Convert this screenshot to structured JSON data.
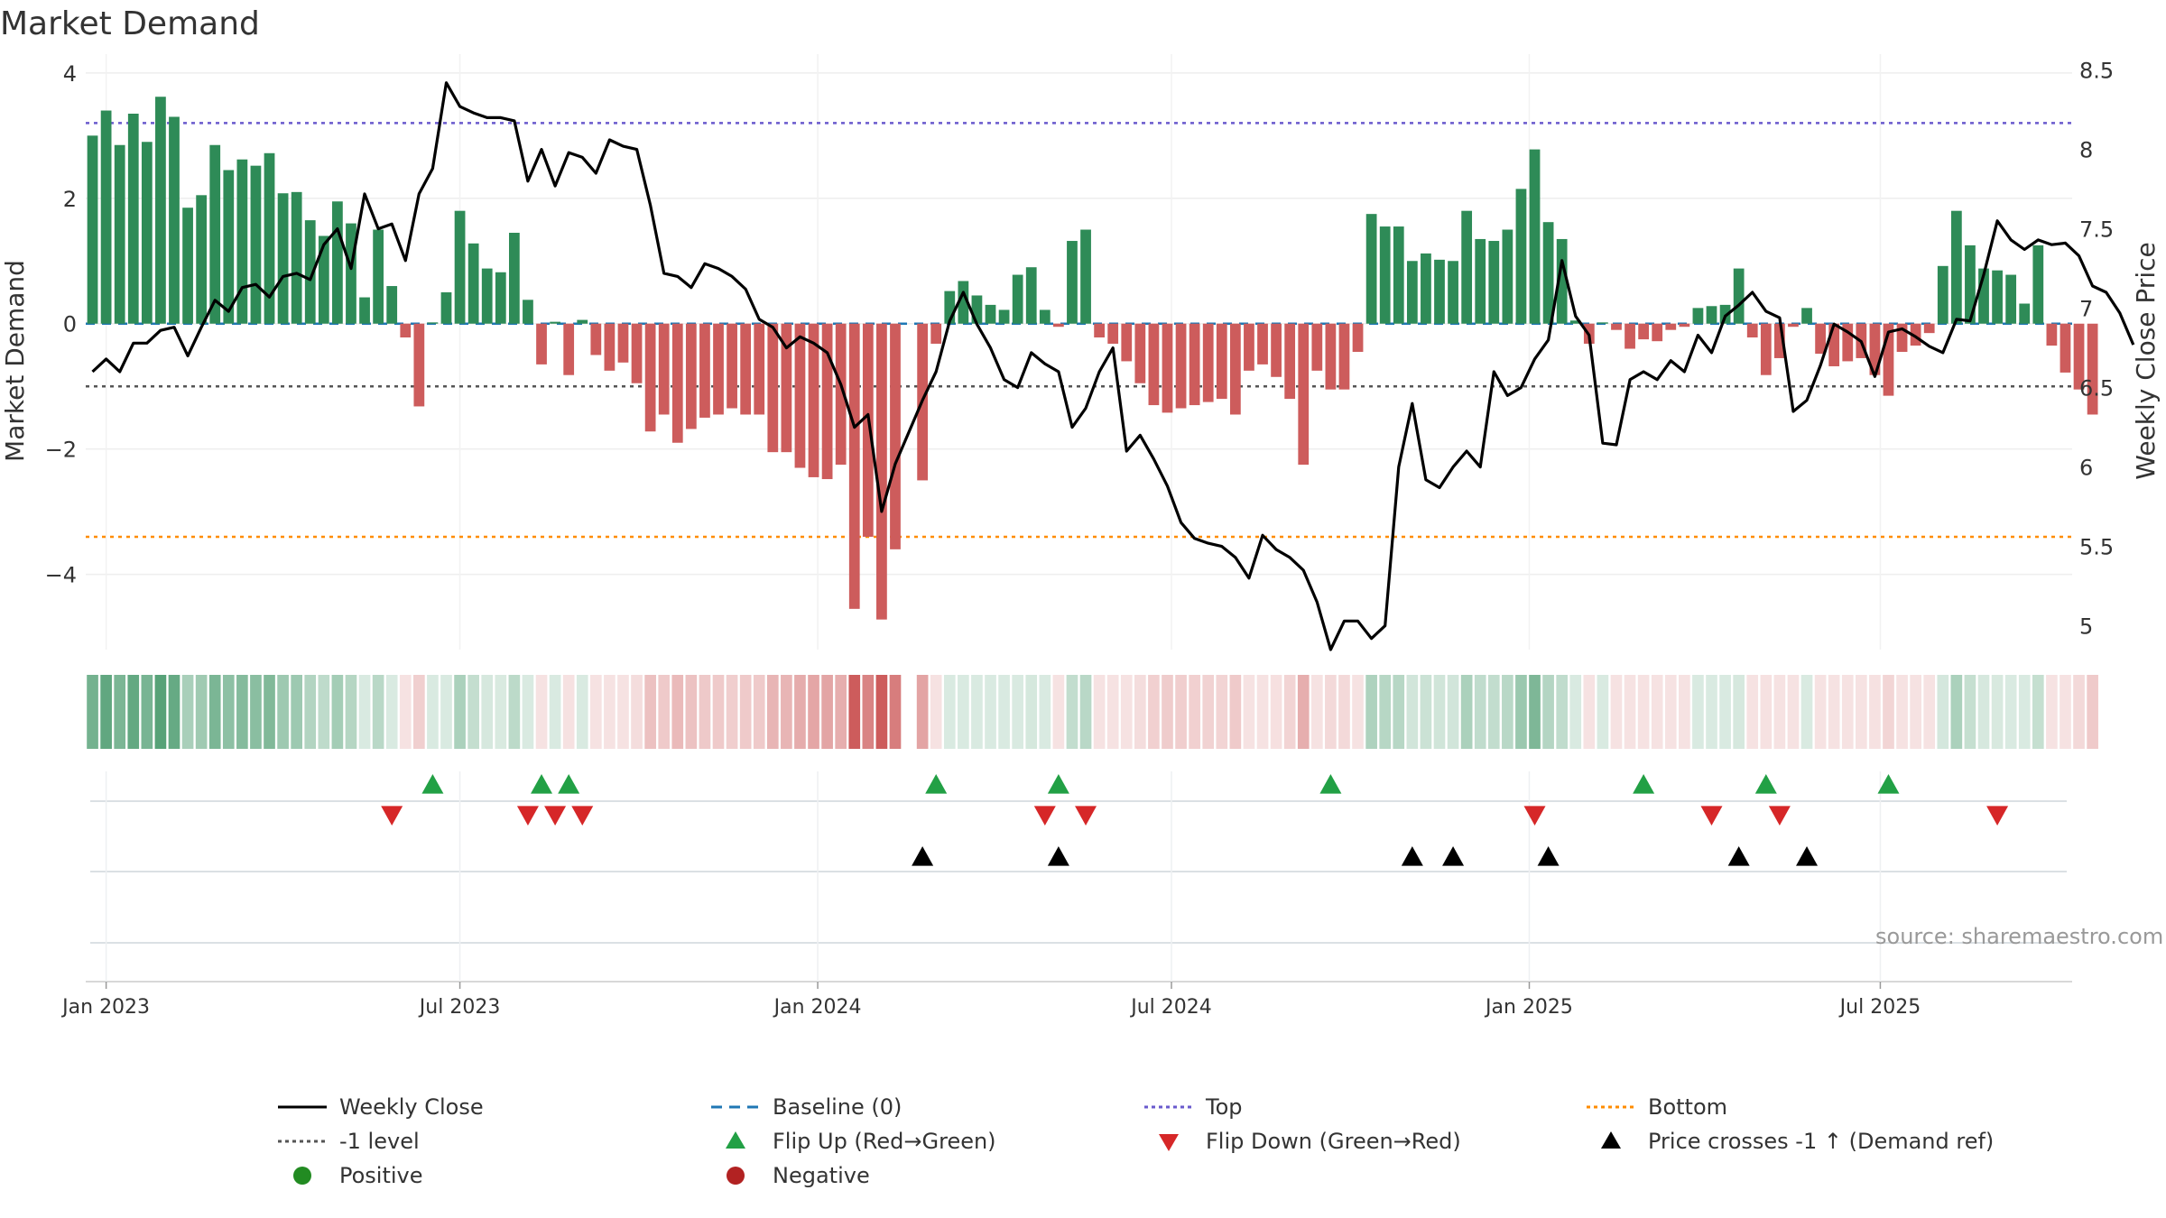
{
  "title": "Market Demand",
  "source": "source: sharemaestro.com",
  "colors": {
    "positive": "#2e8b57",
    "negative": "#cd5c5c",
    "price": "#000000",
    "baseline": "#1f77b4",
    "top": "#6a5acd",
    "bottom": "#ff8c00",
    "level": "#555555",
    "flip_up": "#22a045",
    "flip_down": "#d62728",
    "cross": "#000000",
    "positive_dot": "#228b22",
    "negative_dot": "#b22222"
  },
  "chart_data": {
    "type": "bar",
    "title": "Market Demand",
    "ylabel": "Market Demand",
    "y2label": "Weekly Close Price",
    "ylim": [
      -5.2,
      4.3
    ],
    "y2lim": [
      4.85,
      8.6
    ],
    "yticks": [
      4,
      2,
      0,
      -2,
      -4
    ],
    "ytick_labels": [
      "4",
      "2",
      "0",
      "−2",
      "−4"
    ],
    "y2ticks": [
      8.5,
      8,
      7.5,
      7,
      6.5,
      6,
      5.5,
      5
    ],
    "y2tick_labels": [
      "8.5",
      "8",
      "7.5",
      "7",
      "6.5",
      "6",
      "5.5",
      "5"
    ],
    "xstart": "2022-12-26",
    "weeks": 146,
    "xticks": [
      {
        "label": "Jan 2023",
        "week": 1
      },
      {
        "label": "Jul 2023",
        "week": 27
      },
      {
        "label": "Jan 2024",
        "week": 53.3
      },
      {
        "label": "Jul 2024",
        "week": 79.3
      },
      {
        "label": "Jan 2025",
        "week": 105.6
      },
      {
        "label": "Jul 2025",
        "week": 131.4
      }
    ],
    "reference_lines": {
      "baseline": 0,
      "top": 3.2,
      "bottom": -3.4,
      "level": -1.0
    },
    "demand": [
      3.0,
      3.4,
      2.85,
      3.35,
      2.9,
      3.62,
      3.3,
      1.85,
      2.05,
      2.85,
      2.45,
      2.62,
      2.52,
      2.72,
      2.08,
      2.1,
      1.65,
      1.4,
      1.95,
      1.6,
      0.42,
      1.5,
      0.6,
      -0.22,
      -1.32,
      0.02,
      0.5,
      1.8,
      1.28,
      0.88,
      0.82,
      1.45,
      0.38,
      -0.65,
      0.03,
      -0.82,
      0.06,
      -0.5,
      -0.75,
      -0.62,
      -0.95,
      -1.72,
      -1.45,
      -1.9,
      -1.68,
      -1.5,
      -1.45,
      -1.35,
      -1.45,
      -1.45,
      -2.05,
      -2.05,
      -2.3,
      -2.45,
      -2.48,
      -2.25,
      -4.55,
      -3.4,
      -4.72,
      -3.6,
      null,
      -2.5,
      -0.32,
      0.52,
      0.68,
      0.45,
      0.3,
      0.22,
      0.78,
      0.9,
      0.22,
      -0.05,
      1.32,
      1.5,
      -0.22,
      -0.32,
      -0.6,
      -0.95,
      -1.3,
      -1.42,
      -1.35,
      -1.3,
      -1.25,
      -1.2,
      -1.45,
      -0.75,
      -0.65,
      -0.85,
      -1.2,
      -2.25,
      -0.75,
      -1.05,
      -1.05,
      -0.45,
      1.75,
      1.55,
      1.55,
      1.0,
      1.12,
      1.02,
      1.0,
      1.8,
      1.35,
      1.32,
      1.5,
      2.15,
      2.78,
      1.62,
      1.35,
      0.05,
      -0.32,
      0.02,
      -0.1,
      -0.4,
      -0.25,
      -0.28,
      -0.1,
      -0.05,
      0.25,
      0.28,
      0.3,
      0.88,
      -0.22,
      -0.82,
      -0.55,
      -0.05,
      0.25,
      -0.48,
      -0.68,
      -0.6,
      -0.55,
      -0.82,
      -1.15,
      -0.45,
      -0.35,
      -0.15,
      0.92,
      1.8,
      1.25,
      0.88,
      0.85,
      0.78,
      0.32,
      1.25,
      -0.35,
      -0.78,
      -1.05,
      -1.45
    ],
    "price": [
      6.6,
      6.68,
      6.6,
      6.78,
      6.78,
      6.86,
      6.88,
      6.7,
      6.88,
      7.05,
      6.98,
      7.13,
      7.15,
      7.07,
      7.2,
      7.22,
      7.18,
      7.4,
      7.5,
      7.25,
      7.72,
      7.5,
      7.53,
      7.3,
      7.72,
      7.88,
      8.42,
      8.27,
      8.23,
      8.2,
      8.2,
      8.18,
      7.8,
      8.0,
      7.77,
      7.98,
      7.95,
      7.85,
      8.06,
      8.02,
      8.0,
      7.65,
      7.22,
      7.2,
      7.13,
      7.28,
      7.25,
      7.2,
      7.12,
      6.93,
      6.88,
      6.75,
      6.82,
      6.78,
      6.72,
      6.52,
      6.25,
      6.33,
      5.72,
      6.02,
      6.22,
      6.42,
      6.6,
      6.92,
      7.1,
      6.9,
      6.75,
      6.55,
      6.5,
      6.72,
      6.65,
      6.6,
      6.25,
      6.37,
      6.6,
      6.75,
      6.1,
      6.2,
      6.05,
      5.88,
      5.65,
      5.55,
      5.52,
      5.5,
      5.43,
      5.3,
      5.57,
      5.48,
      5.43,
      5.35,
      5.15,
      4.85,
      5.03,
      5.03,
      4.92,
      5.0,
      6.0,
      6.4,
      5.92,
      5.87,
      6.0,
      6.1,
      6.0,
      6.6,
      6.45,
      6.5,
      6.68,
      6.8,
      7.3,
      6.95,
      6.83,
      6.15,
      6.14,
      6.55,
      6.6,
      6.55,
      6.67,
      6.6,
      6.83,
      6.72,
      6.95,
      7.02,
      7.1,
      6.98,
      6.94,
      6.35,
      6.42,
      6.64,
      6.9,
      6.85,
      6.79,
      6.57,
      6.85,
      6.87,
      6.82,
      6.76,
      6.72,
      6.93,
      6.92,
      7.21,
      7.55,
      7.43,
      7.37,
      7.43,
      7.4,
      7.41,
      7.33,
      7.14,
      7.1,
      6.97,
      6.77
    ],
    "flip_up_weeks": [
      25,
      33,
      35,
      62,
      71,
      91,
      114,
      123,
      132
    ],
    "flip_down_weeks": [
      22,
      32,
      34,
      36,
      70,
      73,
      106,
      119,
      124,
      140
    ],
    "cross_weeks": [
      61,
      71,
      97,
      100,
      107,
      121,
      126
    ]
  },
  "legend": [
    {
      "label": "Weekly Close",
      "type": "line-solid",
      "color": "#000000"
    },
    {
      "label": "Baseline (0)",
      "type": "line-dash",
      "color": "#1f77b4"
    },
    {
      "label": "Top",
      "type": "line-dot",
      "color": "#6a5acd"
    },
    {
      "label": "Bottom",
      "type": "line-dot",
      "color": "#ff8c00"
    },
    {
      "label": "-1 level",
      "type": "line-dot",
      "color": "#555555"
    },
    {
      "label": "Flip Up (Red→Green)",
      "type": "tri-up",
      "color": "#22a045"
    },
    {
      "label": "Flip Down (Green→Red)",
      "type": "tri-down",
      "color": "#d62728"
    },
    {
      "label": "Price crosses -1 ↑ (Demand ref)",
      "type": "tri-up",
      "color": "#000000"
    },
    {
      "label": "Positive",
      "type": "dot",
      "color": "#228b22"
    },
    {
      "label": "Negative",
      "type": "dot",
      "color": "#b22222"
    }
  ]
}
